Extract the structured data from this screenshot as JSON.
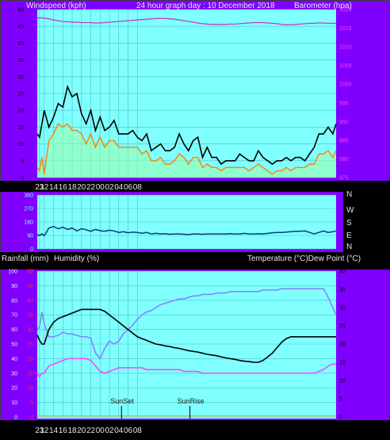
{
  "header": {
    "windspeed_label": "Windspeed (kph)",
    "title": "24 hour graph day : 10 December 2018",
    "barometer_label": "Barometer (hpa)"
  },
  "mid_header": {
    "rainfall_label": "Rainfall (mm)",
    "humidity_label": "Humidity (%)",
    "temperature_label": "Temperature (°C)Dew Point (°C)"
  },
  "compass": [
    "N",
    "W",
    "S",
    "E",
    "N"
  ],
  "x_tick_labels": [
    "23",
    "12",
    "14",
    "16",
    "18",
    "20",
    "22",
    "00",
    "02",
    "04",
    "06",
    "08"
  ],
  "sun_labels": {
    "sunset": "SunSet",
    "sunrise": "SunRise"
  },
  "colors": {
    "panel": "#8000ff",
    "plot": "#80ffff",
    "gust": "#000000",
    "wind_avg": "#ff8000",
    "baro": "#c040c0",
    "wind_dir": "#0a3a78",
    "humidity": "#8080ff",
    "temperature": "#000000",
    "dew_point": "#ff40ff",
    "rain": "#d0c040",
    "grid": "#4cc0c0"
  },
  "chart_data": [
    {
      "type": "line",
      "name": "wind",
      "title": "24 hour graph day : 10 December 2018",
      "ylabel": "Windspeed (kph)",
      "y2label": "Barometer (hpa)",
      "ylim": [
        0,
        50
      ],
      "y2lim": [
        975,
        1020
      ],
      "y_ticks": [
        0,
        5,
        10,
        15,
        20,
        25,
        30,
        35,
        40,
        45,
        50
      ],
      "y2_ticks": [
        975,
        980,
        985,
        990,
        995,
        1000,
        1005,
        1010,
        1015,
        1020
      ],
      "x_hours": [
        22.5,
        23,
        23.5,
        24,
        25,
        26,
        27,
        28,
        29,
        30,
        31,
        32,
        33,
        34,
        35,
        36,
        37,
        38,
        39,
        40,
        41,
        42,
        43,
        44,
        45,
        46,
        47,
        48,
        49,
        50,
        51,
        52,
        53,
        54,
        55,
        56,
        57,
        58,
        59,
        60,
        61,
        62,
        63,
        64,
        65,
        66,
        67,
        68,
        69,
        70,
        71,
        72,
        73,
        74,
        75,
        76,
        77,
        78,
        79,
        80,
        81,
        82,
        83,
        84,
        85,
        86,
        86.7
      ],
      "series": [
        {
          "key": "gust",
          "values": [
            13,
            12,
            16,
            20,
            15,
            18,
            22,
            21,
            27,
            24,
            25,
            19,
            16,
            20,
            14,
            18,
            14,
            15,
            17,
            13,
            13,
            13,
            14,
            12,
            11,
            13,
            8,
            9,
            10,
            8,
            8,
            9,
            13,
            10,
            8,
            11,
            12,
            6,
            9,
            6,
            6,
            4,
            5,
            5,
            5,
            7,
            6,
            5,
            5,
            8,
            6,
            5,
            4,
            5,
            5,
            6,
            5,
            6,
            6,
            5,
            7,
            9,
            13,
            13,
            15,
            13,
            16
          ]
        },
        {
          "key": "average",
          "values": [
            3,
            2,
            6,
            1,
            11,
            13,
            16,
            15,
            16,
            14,
            14,
            13,
            10,
            13,
            9,
            12,
            9,
            11,
            11,
            9,
            9,
            9,
            9,
            9,
            7,
            8,
            5,
            5,
            6,
            4,
            4,
            5,
            7,
            6,
            4,
            6,
            6,
            3,
            4,
            3,
            3,
            2,
            3,
            3,
            3,
            3,
            3,
            2,
            3,
            4,
            3,
            2,
            1,
            2,
            2,
            3,
            2,
            3,
            3,
            3,
            4,
            4,
            7,
            7,
            8,
            6,
            8
          ]
        },
        {
          "key": "barometer",
          "values": [
            1017.6,
            1017.8,
            1017.7,
            1017.7,
            1017.5,
            1017.2,
            1017.0,
            1016.8,
            1016.7,
            1016.6,
            1016.6,
            1016.5,
            1016.5,
            1016.5,
            1016.4,
            1016.4,
            1016.5,
            1016.6,
            1016.7,
            1016.8,
            1016.9,
            1017.0,
            1017.1,
            1017.2,
            1017.3,
            1017.4,
            1017.5,
            1017.6,
            1017.6,
            1017.6,
            1017.5,
            1017.4,
            1017.2,
            1017.0,
            1016.8,
            1016.6,
            1016.4,
            1016.2,
            1016.1,
            1016.0,
            1016.0,
            1016.0,
            1016.0,
            1016.1,
            1016.1,
            1016.2,
            1016.3,
            1016.4,
            1016.5,
            1016.5,
            1016.5,
            1016.4,
            1016.3,
            1016.2,
            1016.0,
            1015.9,
            1015.9,
            1016.0,
            1016.1,
            1016.2,
            1016.3,
            1016.3,
            1016.4,
            1016.4,
            1016.3,
            1016.3,
            1016.3
          ]
        }
      ]
    },
    {
      "type": "scatter",
      "name": "wind_direction",
      "y_categories": [
        "N",
        "W",
        "S",
        "E",
        "N"
      ],
      "x_hours": [
        22.5,
        23,
        23.5,
        24,
        25,
        26,
        27,
        28,
        29,
        30,
        31,
        32,
        33,
        34,
        35,
        36,
        37,
        38,
        39,
        40,
        41,
        42,
        43,
        44,
        45,
        46,
        47,
        48,
        49,
        50,
        51,
        52,
        53,
        54,
        55,
        56,
        57,
        58,
        59,
        60,
        61,
        62,
        63,
        64,
        65,
        66,
        67,
        68,
        69,
        70,
        71,
        72,
        73,
        74,
        75,
        76,
        77,
        78,
        79,
        80,
        81,
        82,
        83,
        84,
        85,
        86,
        86.7
      ],
      "values": [
        95,
        90,
        100,
        88,
        140,
        150,
        135,
        145,
        130,
        140,
        120,
        135,
        128,
        118,
        130,
        122,
        118,
        125,
        120,
        110,
        115,
        108,
        112,
        110,
        105,
        110,
        100,
        105,
        100,
        102,
        98,
        100,
        100,
        98,
        96,
        100,
        100,
        98,
        100,
        100,
        100,
        100,
        100,
        102,
        100,
        100,
        104,
        100,
        100,
        102,
        100,
        104,
        108,
        110,
        110,
        112,
        115,
        118,
        118,
        120,
        110,
        100,
        110,
        120,
        110,
        115,
        120
      ]
    },
    {
      "type": "line",
      "name": "temperature_humidity",
      "y_left_label": "Rainfall (mm)",
      "y_left2_label": "Humidity (%)",
      "y_right_label": "Temperature (°C)Dew Point (°C)",
      "humidity_lim": [
        0,
        100
      ],
      "rain_lim": [
        0,
        50
      ],
      "temp_lim": [
        0,
        40
      ],
      "humidity_ticks": [
        0,
        10,
        20,
        30,
        40,
        50,
        60,
        70,
        80,
        90,
        100
      ],
      "rain_ticks": [
        0,
        5,
        10,
        15,
        20,
        25,
        30,
        35,
        40,
        45,
        50
      ],
      "temp_ticks": [
        0,
        5,
        10,
        15,
        20,
        25,
        30,
        35,
        40
      ],
      "x_hours": [
        22.5,
        23,
        23.5,
        24,
        25,
        26,
        27,
        28,
        29,
        30,
        31,
        32,
        33,
        34,
        35,
        36,
        37,
        38,
        39,
        40,
        41,
        42,
        43,
        44,
        45,
        46,
        47,
        48,
        49,
        50,
        51,
        52,
        53,
        54,
        55,
        56,
        57,
        58,
        59,
        60,
        61,
        62,
        63,
        64,
        65,
        66,
        67,
        68,
        69,
        70,
        71,
        72,
        73,
        74,
        75,
        76,
        77,
        78,
        79,
        80,
        81,
        82,
        83,
        84,
        85,
        86,
        86.7
      ],
      "series": [
        {
          "key": "humidity",
          "values": [
            60,
            62,
            72,
            64,
            55,
            55,
            56,
            58,
            57,
            57,
            56,
            55,
            55,
            54,
            44,
            40,
            47,
            52,
            50,
            52,
            57,
            60,
            63,
            67,
            70,
            72,
            73,
            75,
            77,
            78,
            79,
            80,
            81,
            81,
            82,
            83,
            83,
            84,
            84,
            84,
            85,
            85,
            85,
            86,
            86,
            86,
            86,
            86,
            86,
            86,
            87,
            87,
            87,
            87,
            88,
            88,
            88,
            88,
            88,
            88,
            88,
            88,
            88,
            88,
            82,
            75,
            70
          ]
        },
        {
          "key": "temperature",
          "values": [
            22.5,
            21,
            20,
            20,
            24,
            26,
            27,
            27.5,
            28,
            28.5,
            29,
            29.5,
            29.5,
            29.5,
            29.5,
            29.5,
            29,
            28,
            27,
            26,
            25,
            24,
            23,
            22,
            21.5,
            21,
            20.5,
            20,
            19.8,
            19.5,
            19.3,
            19,
            18.8,
            18.5,
            18.2,
            18,
            17.8,
            17.5,
            17.2,
            17,
            16.8,
            16.5,
            16.2,
            16,
            15.8,
            15.5,
            15.3,
            15.2,
            15,
            15,
            15.5,
            16.5,
            17.5,
            19,
            20.5,
            21.5,
            22,
            22,
            22,
            22,
            22,
            22,
            22,
            22,
            22,
            22,
            22
          ]
        },
        {
          "key": "dew_point",
          "values": [
            12,
            11,
            12,
            12,
            14,
            14.5,
            15,
            15.5,
            16,
            16,
            16,
            16,
            16,
            15.5,
            14,
            12.5,
            12,
            12.5,
            13,
            13.5,
            13.5,
            13.5,
            13.5,
            13.5,
            13.5,
            13,
            13,
            13,
            13,
            13,
            13,
            13,
            13,
            12.5,
            12.5,
            12.5,
            12.5,
            12,
            12,
            12,
            12,
            12,
            12,
            12,
            12,
            12,
            12,
            12,
            12,
            12,
            12,
            12,
            12,
            12,
            12,
            12,
            12,
            12,
            12,
            12,
            12,
            12,
            12.5,
            13,
            14,
            14.5,
            14.5
          ]
        },
        {
          "key": "rainfall",
          "values": [
            0.4,
            0.4,
            0.4,
            0.4,
            0.4,
            0.4,
            0.4,
            0.4,
            0.4,
            0.4,
            0.4,
            0.4,
            0.4,
            0.4,
            0.4,
            0.4,
            0.4,
            0.4,
            0.4,
            0.4,
            0.4,
            0.4,
            0.4,
            0.4,
            0.4,
            0.4,
            0.4,
            0.4,
            0.4,
            0.4,
            0.4,
            0.4,
            0.4,
            0.4,
            0.4,
            0.4,
            0.4,
            0.4,
            0.4,
            0.4,
            0.4,
            0.4,
            0.4,
            0.4,
            0.4,
            0.4,
            0.4,
            0.4,
            0.4,
            0.4,
            0.4,
            0.4,
            0.4,
            0.4,
            0.4,
            0.4,
            0.4,
            0.4,
            0.4,
            0.4,
            0.4,
            0.4,
            0.4,
            0.4,
            0.4,
            0.4,
            0.4
          ]
        }
      ],
      "sunset_hour": 40.6,
      "sunrise_hour": 55.3
    }
  ]
}
